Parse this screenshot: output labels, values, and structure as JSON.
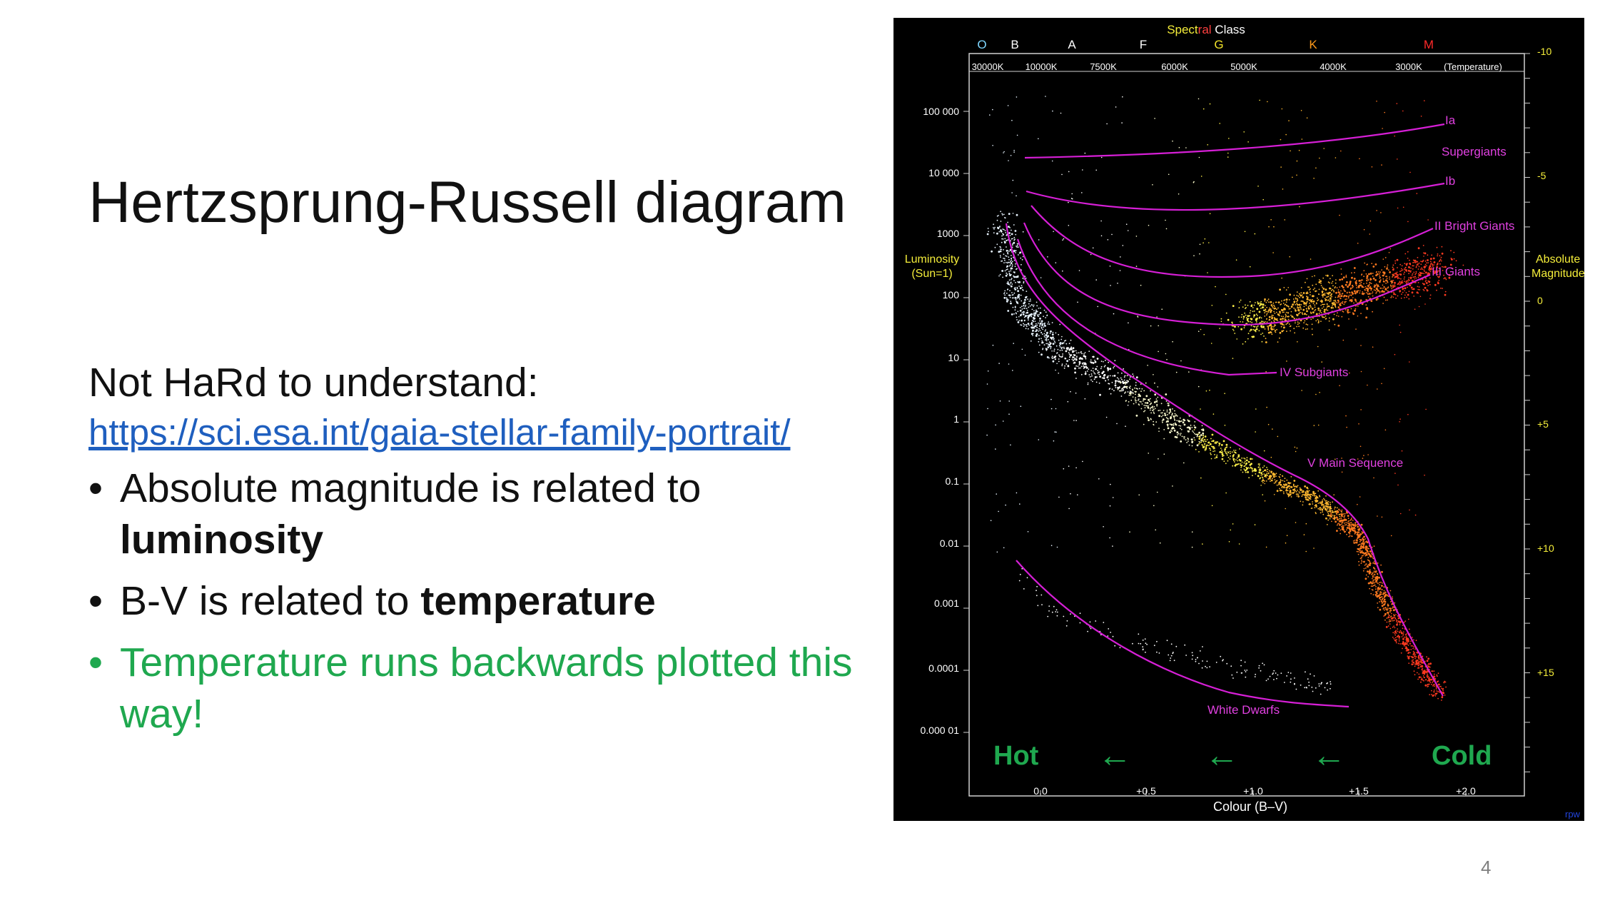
{
  "slide": {
    "title": "Hertzsprung-Russell diagram",
    "intro": "Not HaRd to understand:",
    "link": "https://sci.esa.int/gaia-stellar-family-portrait/",
    "bullets": [
      {
        "pre": "Absolute magnitude is related to ",
        "bold": "luminosity"
      },
      {
        "pre": "B-V is related to ",
        "bold": "temperature"
      },
      {
        "text": "Temperature runs backwards plotted this way!"
      }
    ],
    "page_number": "4",
    "colors": {
      "link": "#1f5fbf",
      "accent_green": "#1fa84f",
      "curve": "#d61fd6"
    }
  },
  "diagram": {
    "spectral_title_parts": [
      "Spect",
      "ral",
      " Class"
    ],
    "spectral_classes": [
      {
        "label": "O",
        "color": "#7fd7ff"
      },
      {
        "label": "B",
        "color": "#ffffff"
      },
      {
        "label": "A",
        "color": "#ffffff"
      },
      {
        "label": "F",
        "color": "#ffffff"
      },
      {
        "label": "G",
        "color": "#f2e32a"
      },
      {
        "label": "K",
        "color": "#ff9a1a"
      },
      {
        "label": "M",
        "color": "#ff2a2a"
      }
    ],
    "temperatures": [
      "30000K",
      "10000K",
      "7500K",
      "6000K",
      "5000K",
      "4000K",
      "3000K",
      "(Temperature)"
    ],
    "luminosity_label": [
      "Luminosity",
      "(Sun=1)"
    ],
    "luminosity_ticks": [
      "100 000",
      "10 000",
      "1000",
      "100",
      "10",
      "1",
      "0.1",
      "0.01",
      "0.001",
      "0.0001",
      "0.000 01"
    ],
    "magnitude_label": [
      "Absolute",
      "Magnitude"
    ],
    "magnitude_ticks": [
      "-10",
      "-5",
      "0",
      "+5",
      "+10",
      "+15"
    ],
    "bv_ticks": [
      "0.0",
      "+0.5",
      "+1.0",
      "+1.5",
      "+2.0"
    ],
    "x_axis_label": "Colour (B–V)",
    "class_labels": [
      "Ia",
      "Supergiants",
      "Ib",
      "II Bright Giants",
      "III  Giants",
      "IV Subgiants",
      "V  Main Sequence",
      "White Dwarfs"
    ],
    "hot_label": "Hot",
    "cold_label": "Cold",
    "arrow_glyph": "←",
    "credit": "rpw"
  }
}
